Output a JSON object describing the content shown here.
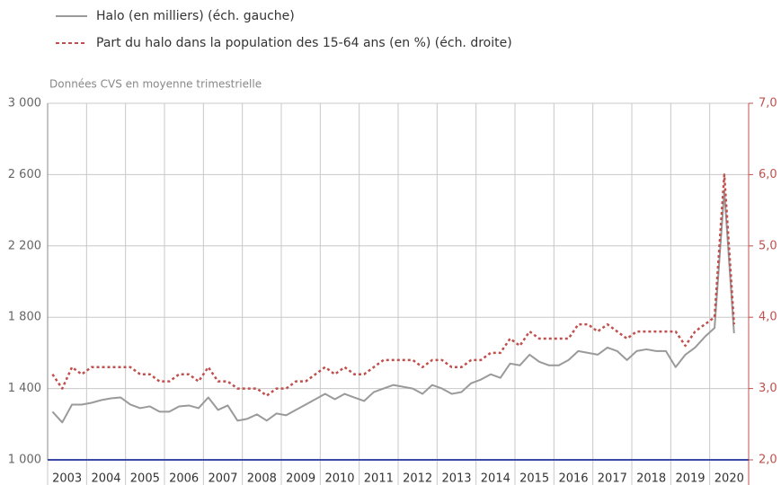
{
  "chart_data": {
    "type": "line",
    "subtitle": "Données CVS en moyenne trimestrielle",
    "categories": [
      "2003",
      null,
      null,
      null,
      "2004",
      null,
      null,
      null,
      "2005",
      null,
      null,
      null,
      "2006",
      null,
      null,
      null,
      "2007",
      null,
      null,
      null,
      "2008",
      null,
      null,
      null,
      "2009",
      null,
      null,
      null,
      "2010",
      null,
      null,
      null,
      "2011",
      null,
      null,
      null,
      "2012",
      null,
      null,
      null,
      "2013",
      null,
      null,
      null,
      "2014",
      null,
      null,
      null,
      "2015",
      null,
      null,
      null,
      "2016",
      null,
      null,
      null,
      "2017",
      null,
      null,
      null,
      "2018",
      null,
      null,
      null,
      "2019",
      null,
      null,
      null,
      "2020",
      null,
      null
    ],
    "series": [
      {
        "name": "Halo (en milliers) (éch. gauche)",
        "color": "#9a9a9a",
        "dash": false,
        "values": [
          1270,
          1210,
          1310,
          1310,
          1320,
          1335,
          1345,
          1350,
          1310,
          1290,
          1300,
          1270,
          1270,
          1300,
          1305,
          1290,
          1350,
          1280,
          1305,
          1220,
          1230,
          1255,
          1220,
          1260,
          1250,
          1280,
          1310,
          1340,
          1370,
          1340,
          1370,
          1350,
          1330,
          1380,
          1400,
          1420,
          1410,
          1400,
          1370,
          1420,
          1400,
          1370,
          1380,
          1430,
          1450,
          1480,
          1460,
          1540,
          1530,
          1590,
          1550,
          1530,
          1530,
          1560,
          1610,
          1600,
          1590,
          1630,
          1610,
          1560,
          1610,
          1620,
          1610,
          1610,
          1520,
          1590,
          1630,
          1690,
          1740,
          2510,
          1710
        ]
      },
      {
        "name": "Part du halo dans la population des 15-64 ans (en %) (éch. droite)",
        "color": "#c0504d",
        "dash": true,
        "axis": "y2",
        "values": [
          3.2,
          3.0,
          3.3,
          3.2,
          3.3,
          3.3,
          3.3,
          3.3,
          3.3,
          3.2,
          3.2,
          3.1,
          3.1,
          3.2,
          3.2,
          3.1,
          3.3,
          3.1,
          3.1,
          3.0,
          3.0,
          3.0,
          2.9,
          3.0,
          3.0,
          3.1,
          3.1,
          3.2,
          3.3,
          3.2,
          3.3,
          3.2,
          3.2,
          3.3,
          3.4,
          3.4,
          3.4,
          3.4,
          3.3,
          3.4,
          3.4,
          3.3,
          3.3,
          3.4,
          3.4,
          3.5,
          3.5,
          3.7,
          3.6,
          3.8,
          3.7,
          3.7,
          3.7,
          3.7,
          3.9,
          3.9,
          3.8,
          3.9,
          3.8,
          3.7,
          3.8,
          3.8,
          3.8,
          3.8,
          3.8,
          3.6,
          3.8,
          3.9,
          4.0,
          6.0,
          3.9
        ]
      }
    ],
    "ylim": [
      1000,
      3000
    ],
    "yticks": [
      {
        "value": 1000,
        "label": "1 000"
      },
      {
        "value": 1400,
        "label": "1 400"
      },
      {
        "value": 1800,
        "label": "1 800"
      },
      {
        "value": 2200,
        "label": "2 200"
      },
      {
        "value": 2600,
        "label": "2 600"
      },
      {
        "value": 3000,
        "label": "3 000"
      }
    ],
    "y2lim": [
      2,
      7
    ],
    "y2ticks": [
      {
        "value": 2,
        "label": "2,0"
      },
      {
        "value": 3,
        "label": "3,0"
      },
      {
        "value": 4,
        "label": "4,0"
      },
      {
        "value": 5,
        "label": "5,0"
      },
      {
        "value": 6,
        "label": "6,0"
      },
      {
        "value": 7,
        "label": "7,0"
      }
    ],
    "grid": true
  }
}
